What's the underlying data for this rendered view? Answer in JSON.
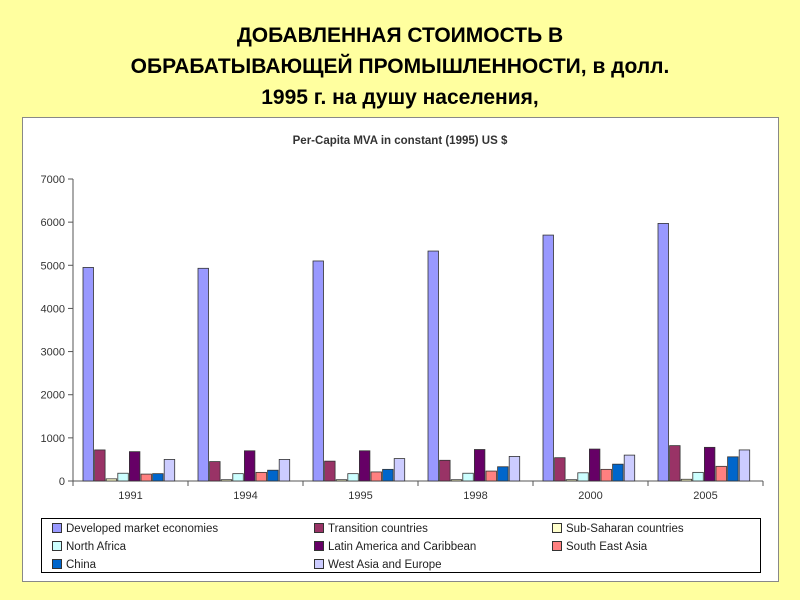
{
  "slide": {
    "title_lines": [
      "ДОБАВЛЕННАЯ СТОИМОСТЬ В",
      "ОБРАБАТЫВАЮЩЕЙ ПРОМЫШЛЕННОСТИ, в долл.",
      "1995 г. на душу населения,"
    ]
  },
  "chart_data": {
    "type": "bar",
    "title": "Per-Capita MVA in constant (1995) US $",
    "xlabel": "",
    "ylabel": "",
    "categories": [
      "1991",
      "1994",
      "1995",
      "1998",
      "2000",
      "2005"
    ],
    "ylim": [
      0,
      7000
    ],
    "yticks": [
      0,
      1000,
      2000,
      3000,
      4000,
      5000,
      6000,
      7000
    ],
    "legend_position": "bottom",
    "grid": false,
    "series": [
      {
        "name": "Developed market economies",
        "color": "#9999ff",
        "values": [
          4950,
          4930,
          5100,
          5330,
          5700,
          5970
        ]
      },
      {
        "name": "Transition countries",
        "color": "#993366",
        "values": [
          720,
          450,
          460,
          480,
          540,
          820
        ]
      },
      {
        "name": "Sub-Saharan countries",
        "color": "#ffffcc",
        "values": [
          50,
          30,
          30,
          30,
          30,
          40
        ]
      },
      {
        "name": "North Africa",
        "color": "#ccffff",
        "values": [
          180,
          170,
          170,
          180,
          190,
          200
        ]
      },
      {
        "name": "Latin America and Caribbean",
        "color": "#660066",
        "values": [
          680,
          700,
          700,
          730,
          740,
          780
        ]
      },
      {
        "name": "South East Asia",
        "color": "#ff8080",
        "values": [
          160,
          200,
          210,
          230,
          270,
          340
        ]
      },
      {
        "name": "China",
        "color": "#0066cc",
        "values": [
          170,
          250,
          270,
          330,
          390,
          560
        ]
      },
      {
        "name": "West Asia and Europe",
        "color": "#ccccff",
        "values": [
          500,
          500,
          520,
          570,
          600,
          720
        ]
      }
    ]
  }
}
